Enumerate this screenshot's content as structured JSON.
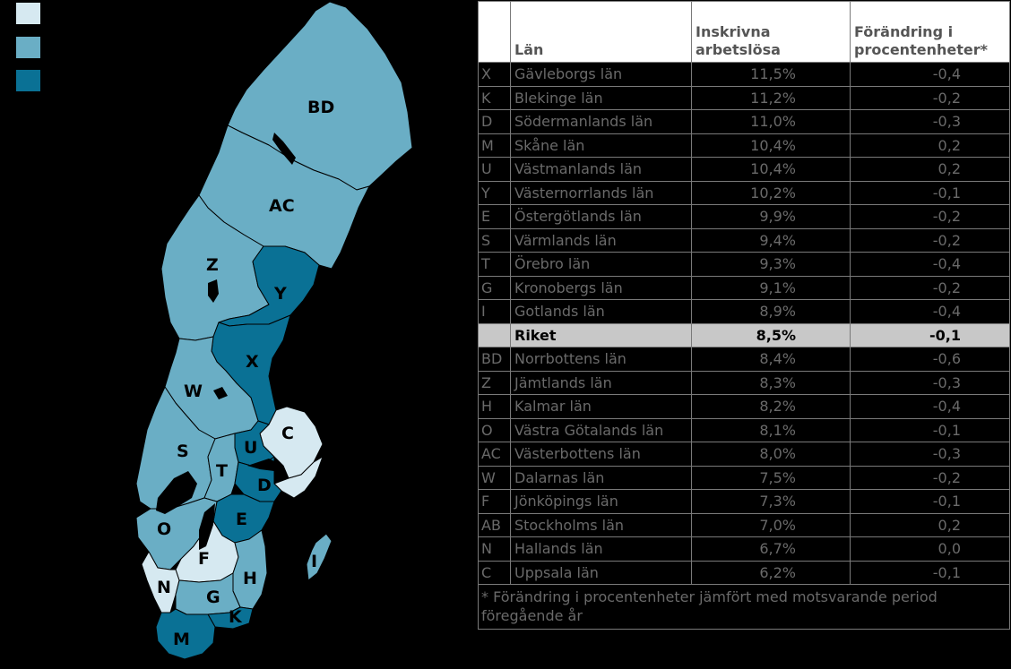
{
  "legend": {
    "colors": [
      "#d6e9f1",
      "#6aaec5",
      "#0a7195"
    ]
  },
  "map": {
    "colors": {
      "light": "#d6e9f1",
      "mid": "#6aaec5",
      "dark": "#0a7195",
      "lake": "#000000",
      "border": "#000000"
    },
    "labels": {
      "BD": "BD",
      "AC": "AC",
      "Z": "Z",
      "Y": "Y",
      "X": "X",
      "W": "W",
      "C": "C",
      "U": "U",
      "S": "S",
      "T": "T",
      "D": "D",
      "E": "E",
      "O": "O",
      "F": "F",
      "I": "I",
      "N": "N",
      "H": "H",
      "G": "G",
      "K": "K",
      "M": "M"
    }
  },
  "table": {
    "headers": {
      "code": "",
      "lan": "Län",
      "rate_line1": "Inskrivna",
      "rate_line2": "arbetslösa",
      "change_line1": "Förändring i",
      "change_line2": "procentenheter*"
    },
    "rows": [
      {
        "code": "X",
        "name": "Gävleborgs län",
        "rate": "11,5%",
        "change": "-0,4"
      },
      {
        "code": "K",
        "name": "Blekinge län",
        "rate": "11,2%",
        "change": "-0,2"
      },
      {
        "code": "D",
        "name": "Södermanlands län",
        "rate": "11,0%",
        "change": "-0,3"
      },
      {
        "code": "M",
        "name": "Skåne län",
        "rate": "10,4%",
        "change": "0,2"
      },
      {
        "code": "U",
        "name": "Västmanlands län",
        "rate": "10,4%",
        "change": "0,2"
      },
      {
        "code": "Y",
        "name": "Västernorrlands län",
        "rate": "10,2%",
        "change": "-0,1"
      },
      {
        "code": "E",
        "name": "Östergötlands län",
        "rate": "9,9%",
        "change": "-0,2"
      },
      {
        "code": "S",
        "name": "Värmlands län",
        "rate": "9,4%",
        "change": "-0,2"
      },
      {
        "code": "T",
        "name": "Örebro län",
        "rate": "9,3%",
        "change": "-0,4"
      },
      {
        "code": "G",
        "name": "Kronobergs län",
        "rate": "9,1%",
        "change": "-0,2"
      },
      {
        "code": "I",
        "name": "Gotlands län",
        "rate": "8,9%",
        "change": "-0,4"
      },
      {
        "code": "",
        "name": "Riket",
        "rate": "8,5%",
        "change": "-0,1",
        "total": true
      },
      {
        "code": "BD",
        "name": "Norrbottens län",
        "rate": "8,4%",
        "change": "-0,6"
      },
      {
        "code": "Z",
        "name": "Jämtlands län",
        "rate": "8,3%",
        "change": "-0,3"
      },
      {
        "code": "H",
        "name": "Kalmar län",
        "rate": "8,2%",
        "change": "-0,4"
      },
      {
        "code": "O",
        "name": "Västra Götalands län",
        "rate": "8,1%",
        "change": "-0,1"
      },
      {
        "code": "AC",
        "name": "Västerbottens län",
        "rate": "8,0%",
        "change": "-0,3"
      },
      {
        "code": "W",
        "name": "Dalarnas län",
        "rate": "7,5%",
        "change": "-0,2"
      },
      {
        "code": "F",
        "name": "Jönköpings län",
        "rate": "7,3%",
        "change": "-0,1"
      },
      {
        "code": "AB",
        "name": "Stockholms län",
        "rate": "7,0%",
        "change": "0,2"
      },
      {
        "code": "N",
        "name": "Hallands län",
        "rate": "6,7%",
        "change": "0,0"
      },
      {
        "code": "C",
        "name": "Uppsala län",
        "rate": "6,2%",
        "change": "-0,1"
      }
    ],
    "footnote": "* Förändring i procentenheter jämfört med motsvarande period föregående år"
  }
}
